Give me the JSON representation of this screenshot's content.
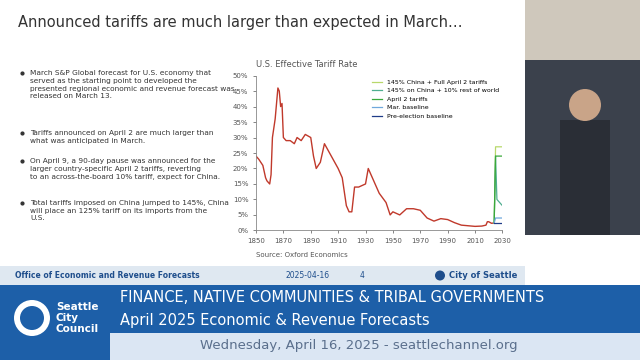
{
  "slide": {
    "title": "Announced tariffs are much larger than expected in March…",
    "bullets": [
      "March S&P Global forecast for U.S. economy that served as the starting point to developed the presented regional economic and revenue forecast was released on March 13.",
      "Tariffs announced on April 2 are much larger than what was anticipated in March.",
      "On April 9, a 90-day pause was announced for the larger country-specific April 2 tariffs, reverting to an across-the-board 10% tariff, expect for China.",
      "Total tariffs imposed on China jumped to 145%, China will place an 125% tariff on its imports from the U.S."
    ],
    "footer": {
      "office": "Office of Economic and Revenue Forecasts",
      "date": "2025-04-16",
      "page": "4",
      "org": "City of Seattle"
    }
  },
  "chart_data": {
    "type": "line",
    "title": "U.S. Effective Tariff Rate",
    "source": "Source: Oxford Economics",
    "xlim": [
      1850,
      2030
    ],
    "xticks": [
      1850,
      1870,
      1890,
      1910,
      1930,
      1950,
      1970,
      1990,
      2010,
      2030
    ],
    "ylim": [
      0,
      50
    ],
    "yticks": [
      {
        "value": 0,
        "label": "0%"
      },
      {
        "value": 5,
        "label": "5%"
      },
      {
        "value": 10,
        "label": "10%"
      },
      {
        "value": 15,
        "label": "15%"
      },
      {
        "value": 20,
        "label": "20%"
      },
      {
        "value": 25,
        "label": "25%"
      },
      {
        "value": 30,
        "label": "30%"
      },
      {
        "value": 35,
        "label": "35%"
      },
      {
        "value": 40,
        "label": "40%"
      },
      {
        "value": 45,
        "label": "45%"
      },
      {
        "value": 50,
        "label": "50%"
      }
    ],
    "legend": "upper right",
    "grid": false,
    "series": [
      {
        "color": "#c0392b",
        "x": [
          1850,
          1852,
          1855,
          1857,
          1858,
          1860,
          1861,
          1862,
          1864,
          1866,
          1867,
          1868,
          1869,
          1870,
          1872,
          1875,
          1878,
          1880,
          1883,
          1886,
          1890,
          1892,
          1894,
          1897,
          1900,
          1905,
          1910,
          1913,
          1916,
          1918,
          1920,
          1922,
          1925,
          1930,
          1932,
          1935,
          1940,
          1945,
          1948,
          1950,
          1955,
          1960,
          1965,
          1970,
          1975,
          1980,
          1985,
          1990,
          1995,
          2000,
          2005,
          2010,
          2015,
          2018,
          2019,
          2020,
          2022,
          2024
        ],
        "values": [
          24,
          23,
          21,
          17,
          16,
          15,
          18,
          30,
          36,
          46,
          45,
          40,
          41,
          30,
          29,
          29,
          28,
          30,
          29,
          31,
          30,
          24,
          20,
          22,
          28,
          24,
          20,
          17,
          8,
          6,
          6,
          14,
          14,
          15,
          20,
          17,
          12,
          9,
          5,
          6,
          5,
          7,
          7,
          6.5,
          4,
          3,
          3.8,
          3.5,
          2.5,
          1.7,
          1.5,
          1.3,
          1.4,
          1.7,
          2.8,
          2.8,
          2.3,
          2.4
        ]
      },
      {
        "name": "145% China + Full April 2 tariffs",
        "color": "#b8d86b",
        "x": [
          2024,
          2025,
          2026,
          2030
        ],
        "values": [
          2.4,
          27,
          27,
          27
        ]
      },
      {
        "name": "145% on China + 10% rest of world",
        "color": "#4fae90",
        "x": [
          2024,
          2025,
          2026,
          2030
        ],
        "values": [
          2.4,
          24,
          10,
          8
        ]
      },
      {
        "name": "April 2 tariffs",
        "color": "#3aa83a",
        "x": [
          2024,
          2025,
          2026,
          2030
        ],
        "values": [
          2.4,
          24,
          24,
          24
        ]
      },
      {
        "name": "Mar. baseline",
        "color": "#6fa8dc",
        "x": [
          2024,
          2025,
          2026,
          2030
        ],
        "values": [
          2.4,
          4,
          4,
          4
        ]
      },
      {
        "name": "Pre-election baseline",
        "color": "#1f3c88",
        "x": [
          2024,
          2025,
          2026,
          2030
        ],
        "values": [
          2.4,
          2.4,
          2.4,
          2.4
        ]
      }
    ]
  },
  "banner": {
    "logo_text": "Seattle City Council",
    "committee": "FINANCE, NATIVE COMMUNITIES & TRIBAL GOVERNMENTS",
    "meeting": "April 2025 Economic & Revenue Forecasts",
    "date_line": "Wednesday, April 16, 2025 - seattlechannel.org"
  }
}
